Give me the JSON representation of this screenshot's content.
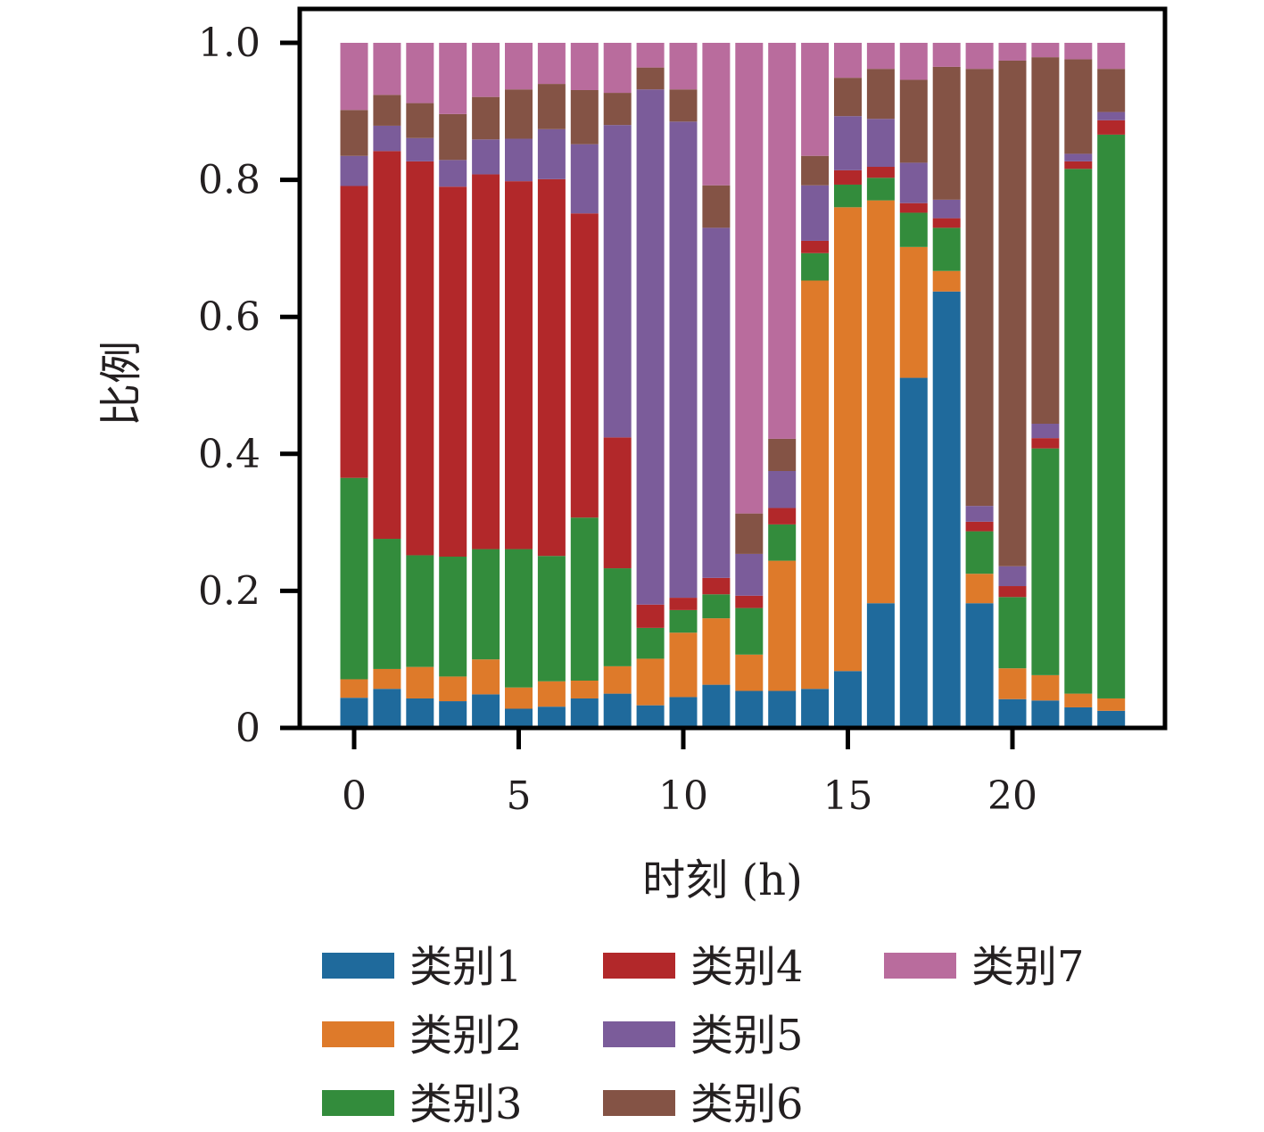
{
  "chart_data": {
    "type": "bar",
    "stacked": true,
    "xlabel": "时刻 (h)",
    "ylabel": "比例",
    "x": [
      0,
      1,
      2,
      3,
      4,
      5,
      6,
      7,
      8,
      9,
      10,
      11,
      12,
      13,
      14,
      15,
      16,
      17,
      18,
      19,
      20,
      21,
      22,
      23
    ],
    "xticks": [
      0,
      5,
      10,
      15,
      20
    ],
    "xtick_labels": [
      "0",
      "5",
      "10",
      "15",
      "20"
    ],
    "ylim": [
      0,
      1
    ],
    "yticks": [
      0,
      0.2,
      0.4,
      0.6,
      0.8,
      1.0
    ],
    "ytick_labels": [
      "0",
      "0.2",
      "0.4",
      "0.6",
      "0.8",
      "1.0"
    ],
    "legend_position": "bottom",
    "series": [
      {
        "name": "类别1",
        "color": "#1f6a9c",
        "values": [
          0.044,
          0.057,
          0.043,
          0.039,
          0.049,
          0.028,
          0.031,
          0.043,
          0.05,
          0.033,
          0.045,
          0.063,
          0.054,
          0.054,
          0.057,
          0.083,
          0.182,
          0.511,
          0.637,
          0.182,
          0.042,
          0.04,
          0.03,
          0.025
        ]
      },
      {
        "name": "类别2",
        "color": "#de7a2a",
        "values": [
          0.027,
          0.029,
          0.046,
          0.036,
          0.051,
          0.031,
          0.037,
          0.026,
          0.04,
          0.068,
          0.094,
          0.097,
          0.053,
          0.19,
          0.596,
          0.677,
          0.588,
          0.191,
          0.03,
          0.043,
          0.045,
          0.037,
          0.02,
          0.018
        ]
      },
      {
        "name": "类别3",
        "color": "#338c3c",
        "values": [
          0.294,
          0.19,
          0.163,
          0.175,
          0.161,
          0.202,
          0.183,
          0.238,
          0.143,
          0.045,
          0.033,
          0.035,
          0.068,
          0.053,
          0.04,
          0.033,
          0.033,
          0.05,
          0.063,
          0.062,
          0.104,
          0.331,
          0.766,
          0.823
        ]
      },
      {
        "name": "类别4",
        "color": "#b2282a",
        "values": [
          0.426,
          0.566,
          0.575,
          0.54,
          0.547,
          0.537,
          0.55,
          0.444,
          0.191,
          0.034,
          0.018,
          0.024,
          0.018,
          0.024,
          0.018,
          0.021,
          0.016,
          0.014,
          0.014,
          0.014,
          0.016,
          0.015,
          0.011,
          0.021
        ]
      },
      {
        "name": "类别5",
        "color": "#7b5c9a",
        "values": [
          0.044,
          0.037,
          0.034,
          0.039,
          0.051,
          0.062,
          0.073,
          0.101,
          0.456,
          0.752,
          0.695,
          0.511,
          0.061,
          0.054,
          0.081,
          0.079,
          0.07,
          0.059,
          0.027,
          0.023,
          0.029,
          0.021,
          0.011,
          0.012
        ]
      },
      {
        "name": "类别6",
        "color": "#845345",
        "values": [
          0.067,
          0.045,
          0.051,
          0.067,
          0.062,
          0.072,
          0.066,
          0.079,
          0.047,
          0.032,
          0.047,
          0.062,
          0.059,
          0.047,
          0.043,
          0.056,
          0.073,
          0.121,
          0.194,
          0.638,
          0.738,
          0.535,
          0.138,
          0.063
        ]
      },
      {
        "name": "类别7",
        "color": "#b96c9d",
        "values": [
          0.098,
          0.076,
          0.088,
          0.104,
          0.079,
          0.068,
          0.06,
          0.069,
          0.073,
          0.036,
          0.068,
          0.208,
          0.687,
          0.578,
          0.165,
          0.051,
          0.038,
          0.054,
          0.035,
          0.038,
          0.026,
          0.021,
          0.024,
          0.038
        ]
      }
    ]
  }
}
